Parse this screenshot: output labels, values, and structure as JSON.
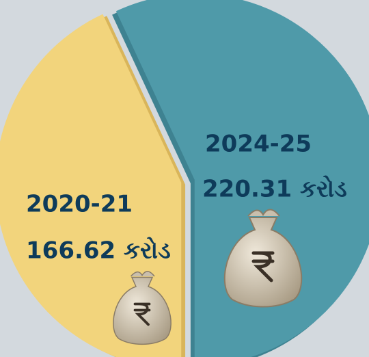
{
  "chart_data": {
    "type": "pie",
    "categories": [
      "2020-21",
      "2024-25"
    ],
    "values": [
      166.62,
      220.31
    ],
    "value_labels": [
      "166.62 કરોડ",
      "220.31 કરોડ"
    ],
    "colors": [
      "#f2d47c",
      "#4f9aa9"
    ]
  }
}
